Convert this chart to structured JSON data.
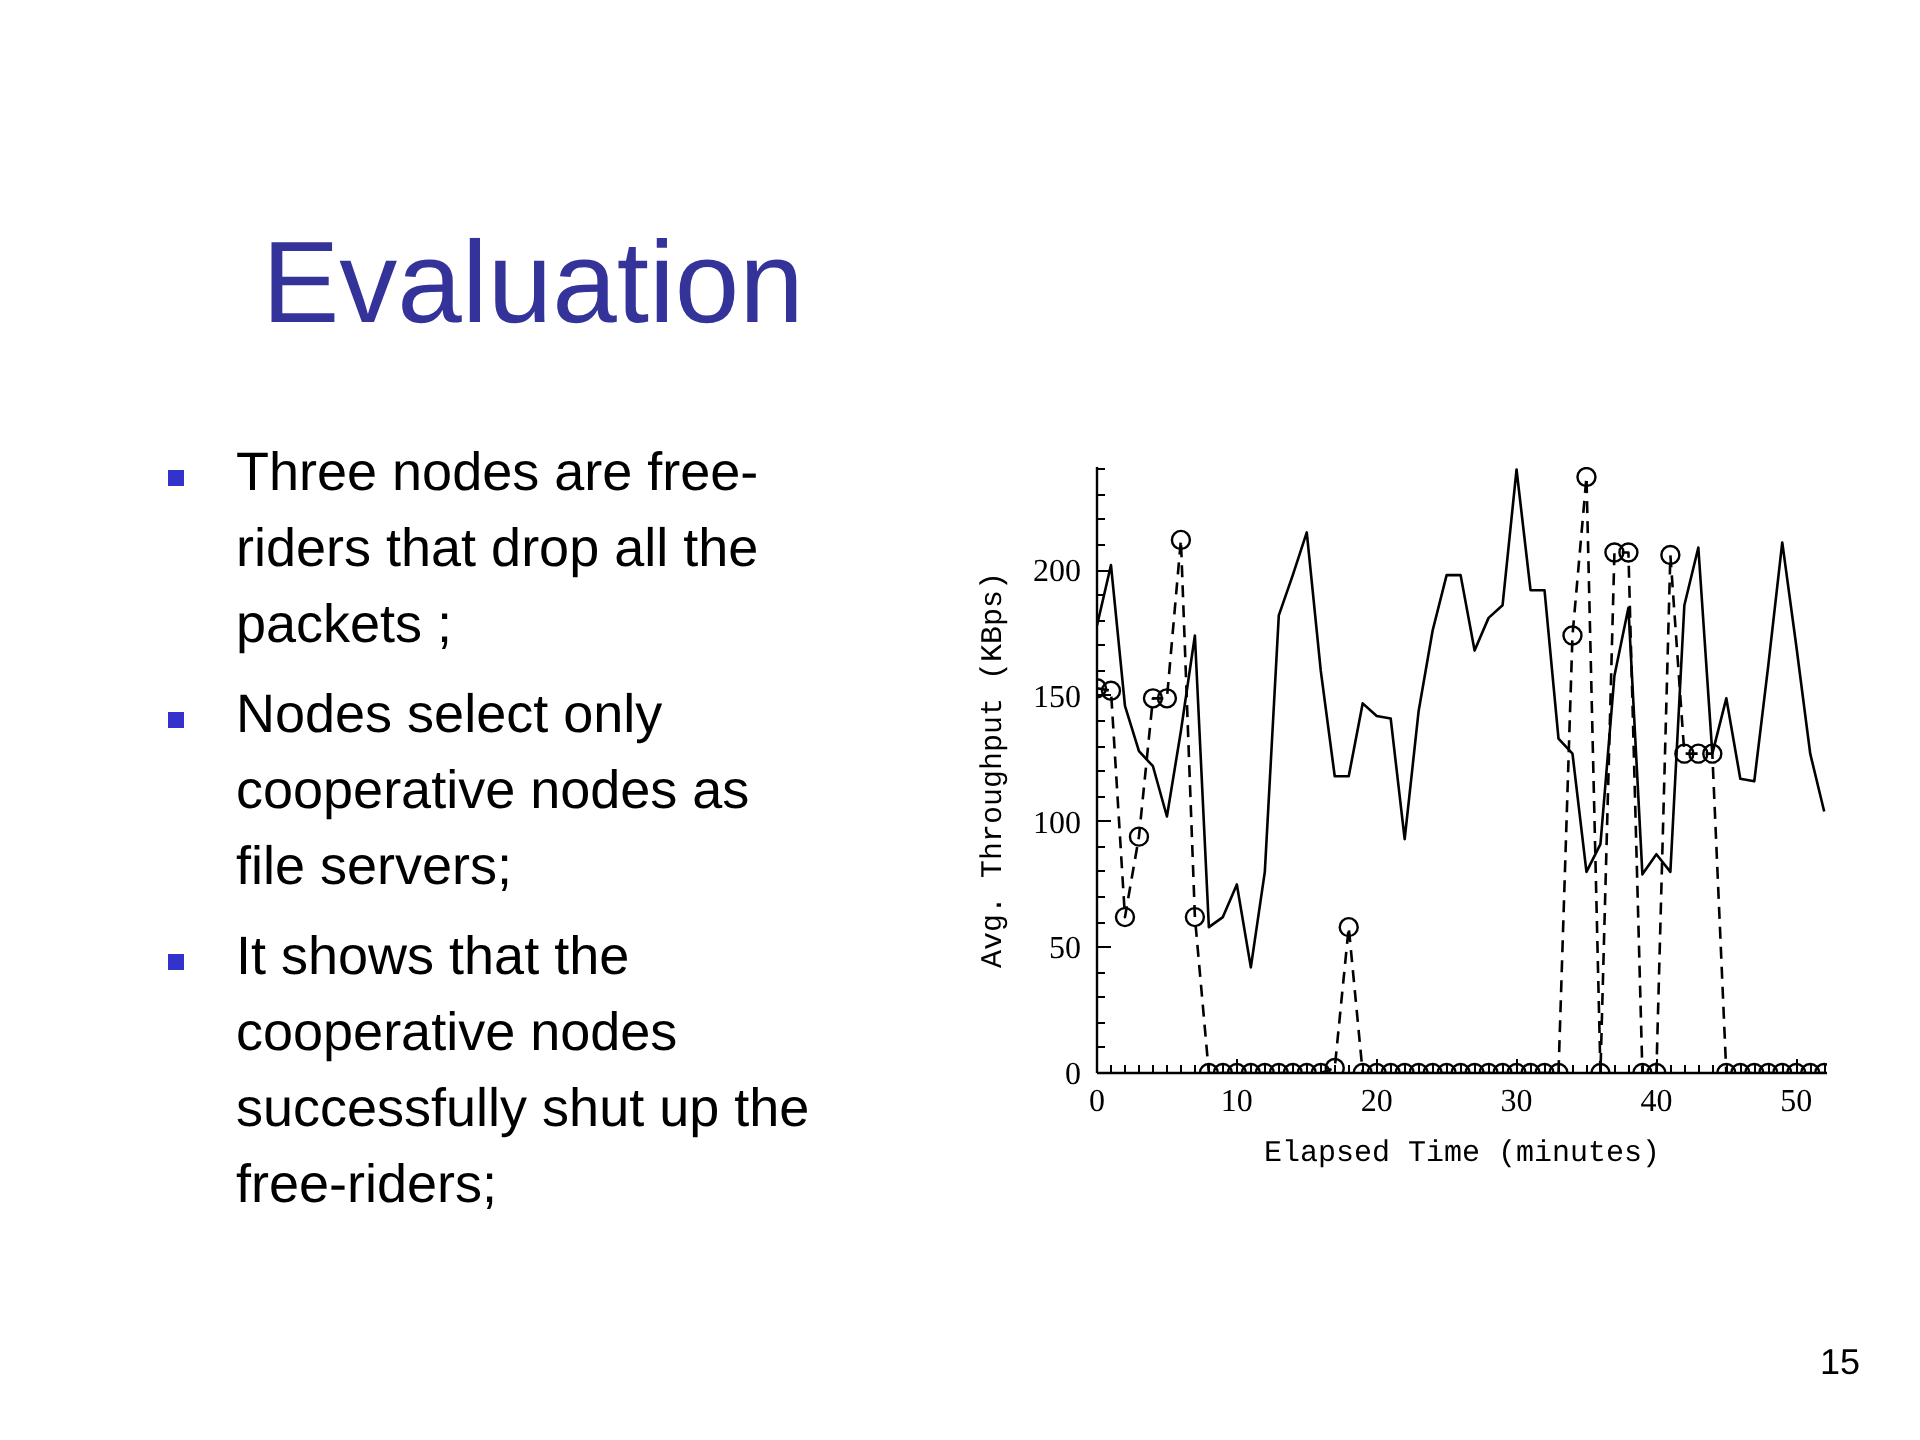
{
  "chart_data": {
    "type": "line",
    "title": "Evaluation",
    "annotations": [
      "Three nodes are free-riders that drop all the packets ;",
      "Nodes select only cooperative nodes as file servers;",
      "It shows that the cooperative nodes successfully shut up the free-riders;",
      "15"
    ],
    "xlabel": "Elapsed Time (minutes)",
    "ylabel": "Avg. Throughput (KBps)",
    "x": [
      0,
      1,
      2,
      3,
      4,
      5,
      6,
      7,
      8,
      9,
      10,
      11,
      12,
      13,
      14,
      15,
      16,
      17,
      18,
      19,
      20,
      21,
      22,
      23,
      24,
      25,
      26,
      27,
      28,
      29,
      30,
      31,
      32,
      33,
      34,
      35,
      36,
      37,
      38,
      39,
      40,
      41,
      42,
      43,
      44,
      45,
      46,
      47,
      48,
      49,
      50,
      51,
      52
    ],
    "series": [
      {
        "color": "#000000",
        "line_style": "solid",
        "marker": "none",
        "values": [
          178,
          202,
          146,
          128,
          122,
          102,
          136,
          174,
          58,
          62,
          75,
          42,
          80,
          182,
          198,
          215,
          160,
          118,
          118,
          147,
          142,
          141,
          93,
          144,
          176,
          198,
          198,
          168,
          181,
          186,
          240,
          192,
          192,
          133,
          127,
          80,
          91,
          158,
          185,
          79,
          87,
          80,
          186,
          209,
          127,
          149,
          117,
          116,
          162,
          211,
          170,
          127,
          104
        ]
      },
      {
        "color": "#000000",
        "line_style": "dashed",
        "marker": "circle",
        "values": [
          153,
          152,
          62,
          94,
          149,
          149,
          212,
          62,
          0,
          0,
          0,
          0,
          0,
          0,
          0,
          0,
          0,
          2,
          58,
          0,
          0,
          0,
          0,
          0,
          0,
          0,
          0,
          0,
          0,
          0,
          0,
          0,
          0,
          0,
          174,
          237,
          0,
          207,
          207,
          0,
          0,
          206,
          127,
          127,
          127,
          0,
          0,
          0,
          0,
          0,
          0,
          0,
          0
        ]
      }
    ],
    "xlim": [
      0,
      52.2
    ],
    "ylim": [
      0,
      241
    ],
    "xticks": [
      0,
      {
        "value": 1,
        "label": null
      },
      {
        "value": 2,
        "label": null
      },
      {
        "value": 3,
        "label": null
      },
      {
        "value": 4,
        "label": null
      },
      {
        "value": 5,
        "label": null
      },
      {
        "value": 6,
        "label": null
      },
      {
        "value": 7,
        "label": null
      },
      {
        "value": 8,
        "label": null
      },
      {
        "value": 9,
        "label": null
      },
      10,
      {
        "value": 11,
        "label": null
      },
      {
        "value": 12,
        "label": null
      },
      {
        "value": 13,
        "label": null
      },
      {
        "value": 14,
        "label": null
      },
      {
        "value": 15,
        "label": null
      },
      {
        "value": 16,
        "label": null
      },
      {
        "value": 17,
        "label": null
      },
      {
        "value": 18,
        "label": null
      },
      {
        "value": 19,
        "label": null
      },
      20,
      {
        "value": 21,
        "label": null
      },
      {
        "value": 22,
        "label": null
      },
      {
        "value": 23,
        "label": null
      },
      {
        "value": 24,
        "label": null
      },
      {
        "value": 25,
        "label": null
      },
      {
        "value": 26,
        "label": null
      },
      {
        "value": 27,
        "label": null
      },
      {
        "value": 28,
        "label": null
      },
      {
        "value": 29,
        "label": null
      },
      30,
      {
        "value": 31,
        "label": null
      },
      {
        "value": 32,
        "label": null
      },
      {
        "value": 33,
        "label": null
      },
      {
        "value": 34,
        "label": null
      },
      {
        "value": 35,
        "label": null
      },
      {
        "value": 36,
        "label": null
      },
      {
        "value": 37,
        "label": null
      },
      {
        "value": 38,
        "label": null
      },
      {
        "value": 39,
        "label": null
      },
      40,
      {
        "value": 41,
        "label": null
      },
      {
        "value": 42,
        "label": null
      },
      {
        "value": 43,
        "label": null
      },
      {
        "value": 44,
        "label": null
      },
      {
        "value": 45,
        "label": null
      },
      {
        "value": 46,
        "label": null
      },
      {
        "value": 47,
        "label": null
      },
      {
        "value": 48,
        "label": null
      },
      {
        "value": 49,
        "label": null
      },
      50,
      {
        "value": 51,
        "label": null
      },
      {
        "value": 52,
        "label": null
      }
    ],
    "yticks": [
      0,
      {
        "value": 10,
        "label": null
      },
      {
        "value": 20,
        "label": null
      },
      {
        "value": 30,
        "label": null
      },
      {
        "value": 40,
        "label": null
      },
      50,
      {
        "value": 60,
        "label": null
      },
      {
        "value": 70,
        "label": null
      },
      {
        "value": 80,
        "label": null
      },
      {
        "value": 90,
        "label": null
      },
      100,
      {
        "value": 110,
        "label": null
      },
      {
        "value": 120,
        "label": null
      },
      {
        "value": 130,
        "label": null
      },
      {
        "value": 140,
        "label": null
      },
      150,
      {
        "value": 160,
        "label": null
      },
      {
        "value": 170,
        "label": null
      },
      {
        "value": 180,
        "label": null
      },
      {
        "value": 190,
        "label": null
      },
      200,
      {
        "value": 210,
        "label": null
      },
      {
        "value": 220,
        "label": null
      },
      {
        "value": 230,
        "label": null
      },
      {
        "value": 240,
        "label": null
      }
    ]
  }
}
